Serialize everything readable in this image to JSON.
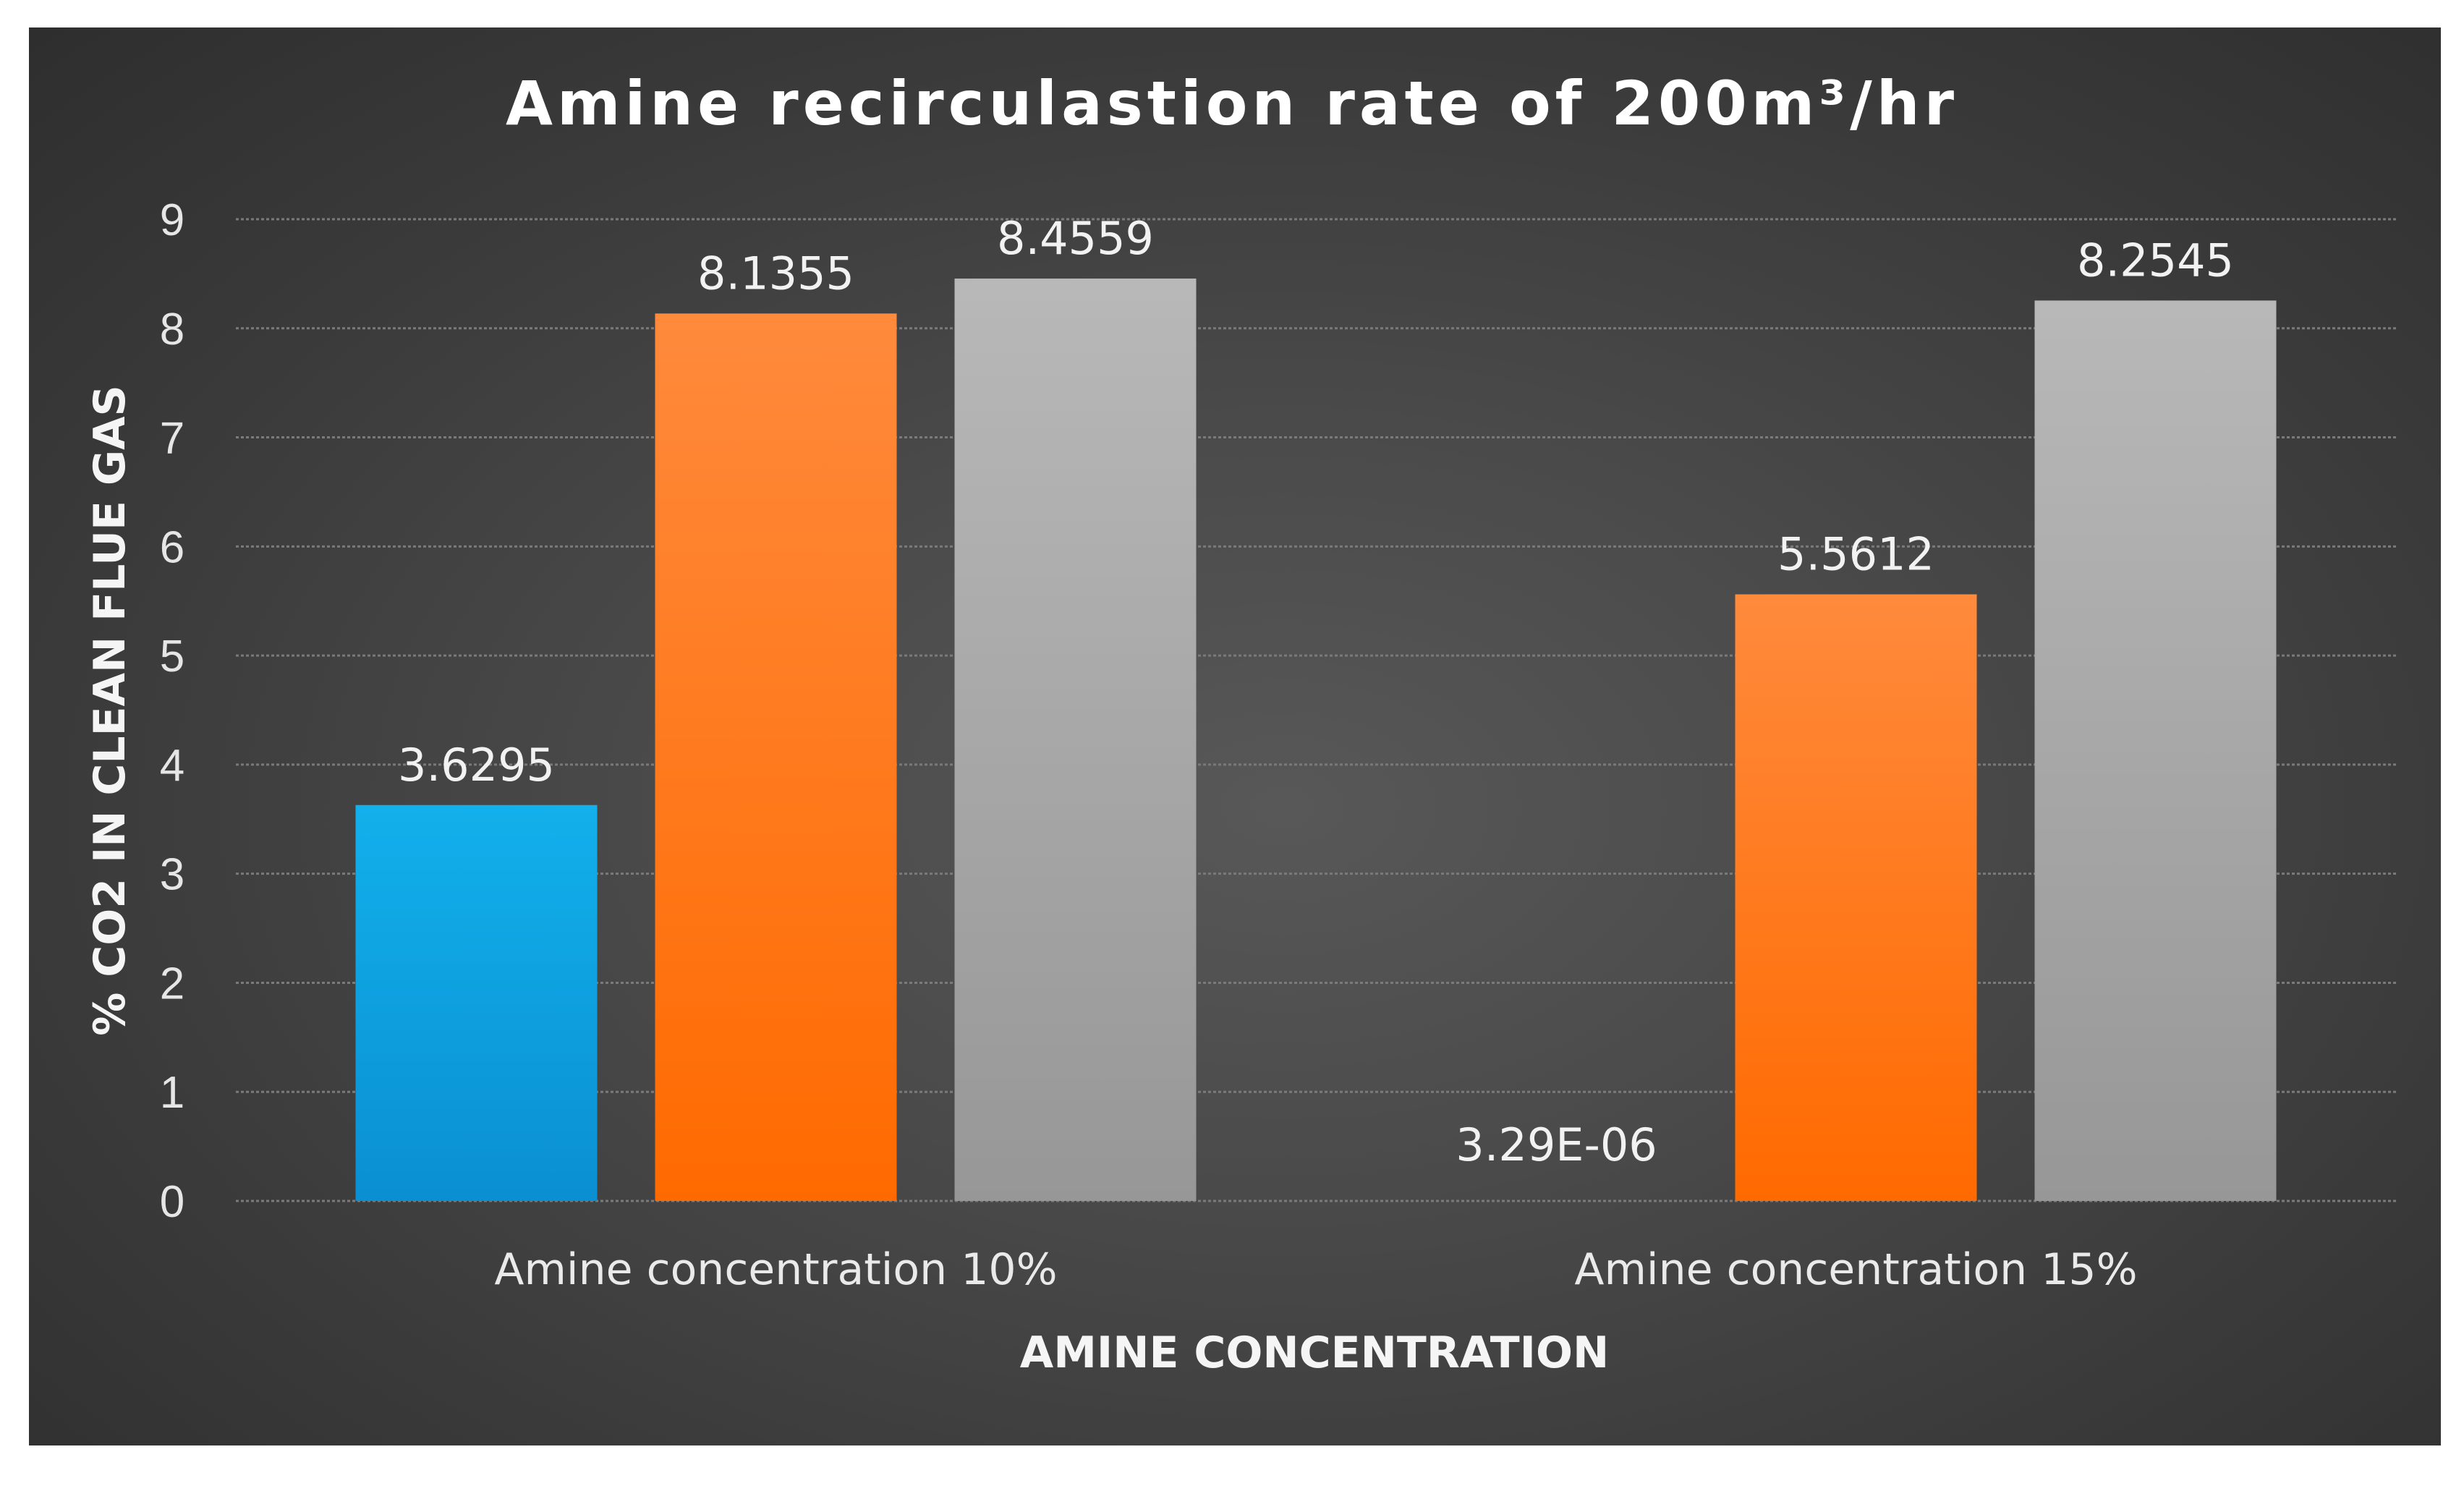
{
  "chart_data": {
    "type": "bar",
    "title": "Amine recirculastion rate of 200m³/hr",
    "xlabel": "AMINE CONCENTRATION",
    "ylabel": "% CO2 IN CLEAN FLUE GAS",
    "ylim": [
      0,
      9
    ],
    "yticks": [
      "0",
      "1",
      "2",
      "3",
      "4",
      "5",
      "6",
      "7",
      "8",
      "9"
    ],
    "grid": true,
    "legend": "none",
    "categories": [
      "Amine concentration 10%",
      "Amine concentration 15%"
    ],
    "series": [
      {
        "values": [
          3.6295,
          3.29e-06
        ],
        "labels": [
          "3.6295",
          "3.29E-06"
        ],
        "color": "#0aa6e4"
      },
      {
        "values": [
          8.1355,
          5.5612
        ],
        "labels": [
          "8.1355",
          "5.5612"
        ],
        "color": "#ff7a14"
      },
      {
        "values": [
          8.4559,
          8.2545
        ],
        "labels": [
          "8.4559",
          "8.2545"
        ],
        "color": "#a8a8a8"
      }
    ]
  }
}
